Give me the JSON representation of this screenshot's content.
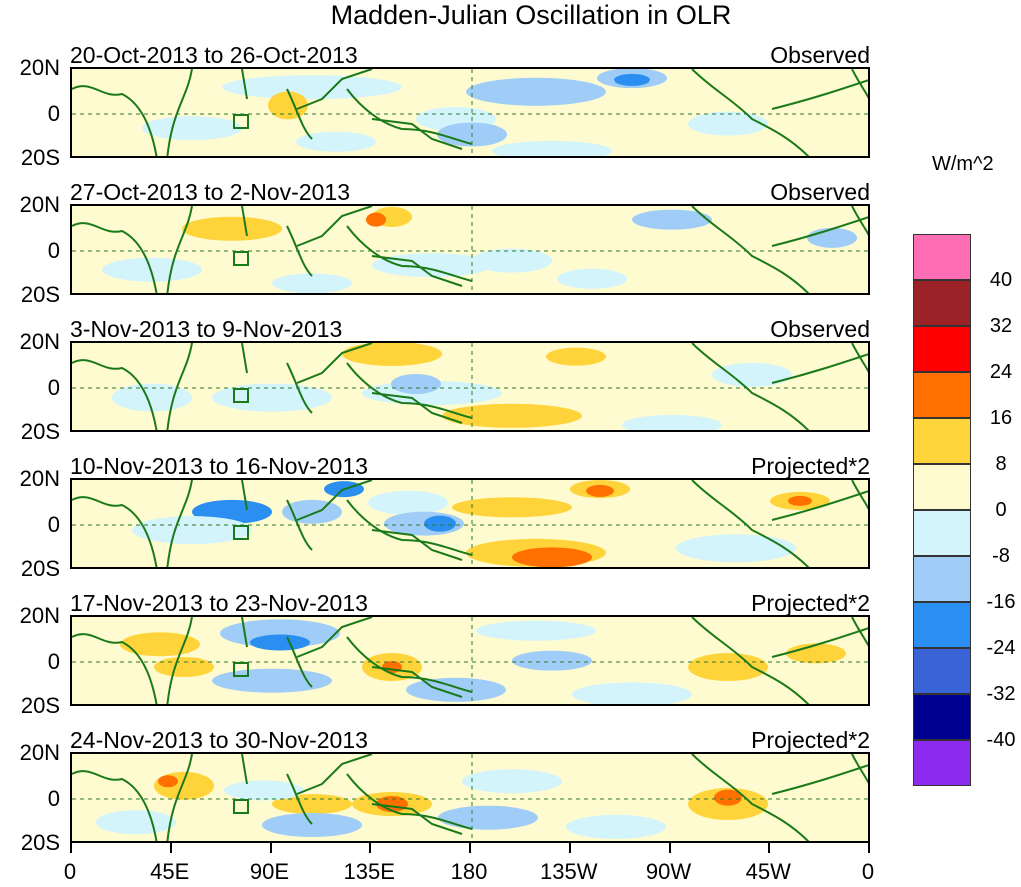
{
  "chart_data": {
    "type": "heatmap",
    "title": "Madden-Julian Oscillation in OLR",
    "units": "W/m^2",
    "x_ticks": [
      "0",
      "45E",
      "90E",
      "135E",
      "180",
      "135W",
      "90W",
      "45W",
      "0"
    ],
    "y_ticks": [
      "20N",
      "0",
      "20S"
    ],
    "panels": [
      {
        "dates": "20-Oct-2013 to 26-Oct-2013",
        "label": "Observed"
      },
      {
        "dates": "27-Oct-2013 to 2-Nov-2013",
        "label": "Observed"
      },
      {
        "dates": "3-Nov-2013 to 9-Nov-2013",
        "label": "Observed"
      },
      {
        "dates": "10-Nov-2013 to 16-Nov-2013",
        "label": "Projected*2"
      },
      {
        "dates": "17-Nov-2013 to 23-Nov-2013",
        "label": "Projected*2"
      },
      {
        "dates": "24-Nov-2013 to 30-Nov-2013",
        "label": "Projected*2"
      }
    ],
    "colorbar": {
      "labels": [
        "40",
        "32",
        "24",
        "16",
        "8",
        "0",
        "-8",
        "-16",
        "-24",
        "-32",
        "-40"
      ],
      "colors": [
        "#ff6eb4",
        "#9b2226",
        "#ff0000",
        "#ff7000",
        "#ffd43b",
        "#fffbd0",
        "#d3f4fb",
        "#9fcdf7",
        "#2a8ff0",
        "#3a63d6",
        "#000090",
        "#8c2af0"
      ]
    }
  }
}
